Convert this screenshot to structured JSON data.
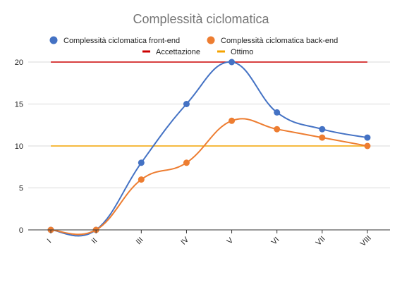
{
  "chart_data": {
    "type": "line",
    "title": "Complessità ciclomatica",
    "xlabel": "",
    "ylabel": "",
    "categories": [
      "I",
      "II",
      "III",
      "IV",
      "V",
      "VI",
      "VII",
      "VIII"
    ],
    "ylim": [
      0,
      20
    ],
    "yticks": [
      0,
      5,
      10,
      15,
      20
    ],
    "grid": true,
    "legend_position": "top",
    "series": [
      {
        "name": "Complessità ciclomatica front-end",
        "marker": "circle",
        "smooth": true,
        "color": "#4472C4",
        "values": [
          0,
          0,
          8,
          15,
          20,
          14,
          12,
          11
        ]
      },
      {
        "name": "Complessità ciclomatica back-end",
        "marker": "circle",
        "smooth": true,
        "color": "#ED7D31",
        "values": [
          0,
          0,
          6,
          8,
          13,
          12,
          11,
          10
        ]
      },
      {
        "name": "Accettazione",
        "marker": "none",
        "smooth": false,
        "color": "#CC0000",
        "values": [
          20,
          20,
          20,
          20,
          20,
          20,
          20,
          20
        ]
      },
      {
        "name": "Ottimo",
        "marker": "none",
        "smooth": false,
        "color": "#F4A300",
        "values": [
          10,
          10,
          10,
          10,
          10,
          10,
          10,
          10
        ]
      }
    ]
  }
}
